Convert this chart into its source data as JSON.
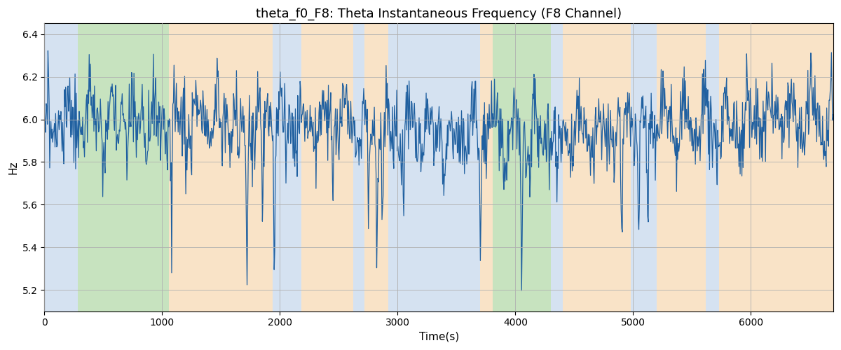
{
  "title": "theta_f0_F8: Theta Instantaneous Frequency (F8 Channel)",
  "xlabel": "Time(s)",
  "ylabel": "Hz",
  "xlim": [
    0,
    6700
  ],
  "ylim": [
    5.1,
    6.45
  ],
  "line_color": "#2060a0",
  "line_width": 0.9,
  "bg_color": "#ffffff",
  "grid_color": "#b0b0b0",
  "title_fontsize": 13,
  "label_fontsize": 11,
  "seed": 2023,
  "n_points": 1340,
  "mean_freq": 5.97,
  "std_freq": 0.09,
  "regions": [
    {
      "start": 0,
      "end": 285,
      "color": "#adc6e4",
      "alpha": 0.5
    },
    {
      "start": 285,
      "end": 1060,
      "color": "#90c880",
      "alpha": 0.5
    },
    {
      "start": 1060,
      "end": 1940,
      "color": "#f5c890",
      "alpha": 0.5
    },
    {
      "start": 1940,
      "end": 2180,
      "color": "#adc6e4",
      "alpha": 0.5
    },
    {
      "start": 2180,
      "end": 2620,
      "color": "#f5c890",
      "alpha": 0.5
    },
    {
      "start": 2620,
      "end": 2720,
      "color": "#adc6e4",
      "alpha": 0.5
    },
    {
      "start": 2720,
      "end": 2920,
      "color": "#f5c890",
      "alpha": 0.5
    },
    {
      "start": 2920,
      "end": 3700,
      "color": "#adc6e4",
      "alpha": 0.5
    },
    {
      "start": 3700,
      "end": 3810,
      "color": "#f5c890",
      "alpha": 0.5
    },
    {
      "start": 3810,
      "end": 4300,
      "color": "#90c880",
      "alpha": 0.5
    },
    {
      "start": 4300,
      "end": 4400,
      "color": "#adc6e4",
      "alpha": 0.5
    },
    {
      "start": 4400,
      "end": 4980,
      "color": "#f5c890",
      "alpha": 0.5
    },
    {
      "start": 4980,
      "end": 5200,
      "color": "#adc6e4",
      "alpha": 0.5
    },
    {
      "start": 5200,
      "end": 5620,
      "color": "#f5c890",
      "alpha": 0.5
    },
    {
      "start": 5620,
      "end": 5730,
      "color": "#adc6e4",
      "alpha": 0.5
    },
    {
      "start": 5730,
      "end": 6700,
      "color": "#f5c890",
      "alpha": 0.5
    }
  ],
  "dip_locs": [
    1080,
    1200,
    1650,
    1720,
    1850,
    1950,
    2050,
    2450,
    2750,
    2820,
    2870,
    3050,
    3700,
    3900,
    4050,
    4350,
    4900,
    5050,
    5120
  ],
  "dip_depths": [
    0.55,
    0.35,
    0.45,
    0.6,
    0.45,
    0.5,
    0.4,
    0.45,
    0.5,
    0.55,
    0.45,
    0.5,
    0.55,
    0.35,
    0.6,
    0.5,
    0.65,
    0.55,
    0.45
  ],
  "dip_widths": [
    3,
    2,
    3,
    4,
    3,
    3,
    2,
    3,
    3,
    4,
    3,
    3,
    4,
    2,
    4,
    3,
    5,
    4,
    3
  ]
}
